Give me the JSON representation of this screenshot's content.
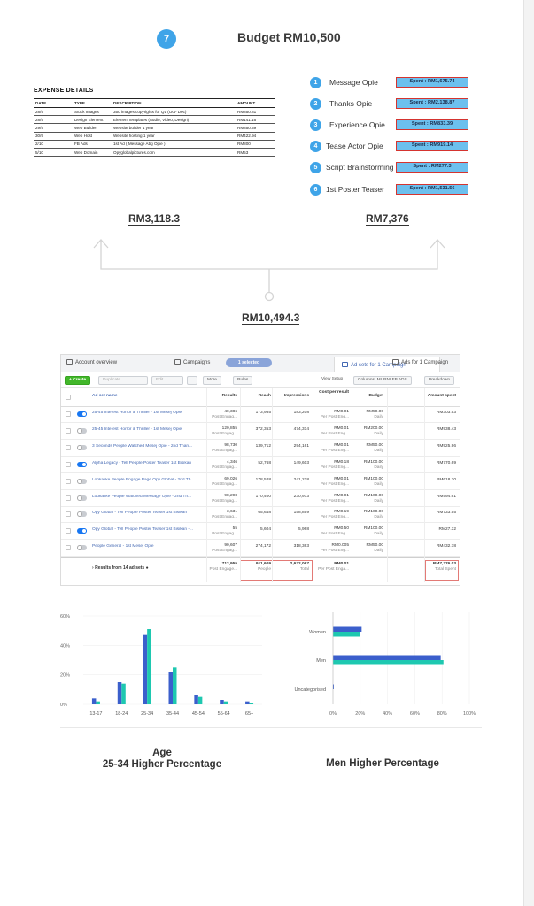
{
  "header": {
    "step_number": "7",
    "title": "Budget RM10,500"
  },
  "expense": {
    "title": "EXPENSE DETAILS",
    "columns": [
      "DATE",
      "TYPE",
      "DESCRIPTION",
      "AMOUNT"
    ],
    "rows": [
      [
        "28/9",
        "Stock Images",
        "350 images copyrights for Q1 (Oct- Dec)",
        "RM850.81"
      ],
      [
        "28/9",
        "Design Element",
        "Element templates (Audio, Video, Design)",
        "RM141.16"
      ],
      [
        "29/9",
        "Web Builder",
        "Website builder 1 year",
        "RM850.39"
      ],
      [
        "30/9",
        "Web Host",
        "Website hosting 1 year",
        "RM422.94"
      ],
      [
        "2/10",
        "FB Ads",
        "1st Ad ( Message Abg Opie )",
        "RM800"
      ],
      [
        "5/10",
        "Web Domain",
        "Opyglobalpictures.com",
        "RM53"
      ]
    ],
    "total": "RM3,118.3"
  },
  "spend": {
    "items": [
      {
        "num": "1",
        "label": "Message Opie",
        "spent": "Spent : RM1,675.74"
      },
      {
        "num": "2",
        "label": "Thanks Opie",
        "spent": "Spent : RM2,138.87"
      },
      {
        "num": "3",
        "label": "Experience Opie",
        "spent": "Spent : RM833.39"
      },
      {
        "num": "4",
        "label": "Tease Actor Opie",
        "spent": "Spent : RM919.14"
      },
      {
        "num": "5",
        "label": "Script Brainstorming",
        "spent": "Spent : RM277.3"
      },
      {
        "num": "6",
        "label": "1st Poster Teaser",
        "spent": "Spent : RM1,531.56"
      }
    ],
    "total": "RM7,376"
  },
  "grand_total": "RM10,494.3",
  "ads_manager": {
    "tabs": {
      "account": "Account overview",
      "campaigns": "Campaigns",
      "selected": "1 selected",
      "adsets": "Ad sets for 1 Campaign",
      "ads": "Ads for 1 Campaign"
    },
    "toolbar": {
      "create": "+ Create",
      "duplicate": "Duplicate",
      "edit": "Edit",
      "more": "More",
      "rules": "Rules",
      "view_setup": "View Setup",
      "columns": "Columns: MURNI FB ADS",
      "breakdown": "Breakdown"
    },
    "headers": {
      "name": "Ad set name",
      "results": "Results",
      "reach": "Reach",
      "impressions": "Impressions",
      "cost": "Cost per result",
      "budget": "Budget",
      "spent": "Amount spent"
    },
    "rows": [
      {
        "on": true,
        "name": "25-45 Interest Horror & Thriller - 1st Mesej Opie",
        "results": "40,386",
        "results_sub": "Post Engag...",
        "reach": "173,985",
        "impressions": "183,208",
        "cost": "RM0.01",
        "cost_sub": "Per Post Eng...",
        "budget": "RM50.00",
        "budget_sub": "Daily",
        "spent": "RM303.53"
      },
      {
        "on": false,
        "name": "25-45 Interest Horror & Thriller - 1st Mesej Opie",
        "results": "120,855",
        "results_sub": "Post Engag...",
        "reach": "372,353",
        "impressions": "474,314",
        "cost": "RM0.01",
        "cost_sub": "Per Post Eng...",
        "budget": "RM200.00",
        "budget_sub": "Daily",
        "spent": "RM938.43"
      },
      {
        "on": false,
        "name": "3 Seconds People Watched Mesej Opie - 2nd Than...",
        "results": "98,730",
        "results_sub": "Post Engag...",
        "reach": "139,712",
        "impressions": "294,161",
        "cost": "RM0.01",
        "cost_sub": "Per Post Eng...",
        "budget": "RM50.00",
        "budget_sub": "Daily",
        "spent": "RM925.96"
      },
      {
        "on": true,
        "name": "Alpha Legacy - Tell People Poster Teaser 1st Bisikan",
        "results": "4,346",
        "results_sub": "Post Engag...",
        "reach": "52,768",
        "impressions": "149,603",
        "cost": "RM0.18",
        "cost_sub": "Per Post Eng...",
        "budget": "RM100.00",
        "budget_sub": "Daily",
        "spent": "RM770.69"
      },
      {
        "on": false,
        "name": "Lookalike People Engage Page Opy Global - 2nd Th...",
        "results": "69,026",
        "results_sub": "Post Engag...",
        "reach": "178,528",
        "impressions": "241,218",
        "cost": "RM0.01",
        "cost_sub": "Per Post Eng...",
        "budget": "RM100.00",
        "budget_sub": "Daily",
        "spent": "RM618.30"
      },
      {
        "on": false,
        "name": "Lookalike People Watched Message Opie - 2nd Th...",
        "results": "98,298",
        "results_sub": "Post Engag...",
        "reach": "170,400",
        "impressions": "230,973",
        "cost": "RM0.01",
        "cost_sub": "Per Post Eng...",
        "budget": "RM100.00",
        "budget_sub": "Daily",
        "spent": "RM594.61"
      },
      {
        "on": false,
        "name": "Opy Global - Tell People Poster Teaser 1st Bisikan",
        "results": "3,631",
        "results_sub": "Post Engag...",
        "reach": "65,648",
        "impressions": "158,859",
        "cost": "RM0.19",
        "cost_sub": "Per Post Eng...",
        "budget": "RM100.00",
        "budget_sub": "Daily",
        "spent": "RM733.55"
      },
      {
        "on": true,
        "name": "Opy Global - Tell People Poster Teaser 1st Bisikan -...",
        "results": "55",
        "results_sub": "Post Engag...",
        "reach": "5,604",
        "impressions": "5,968",
        "cost": "RM0.50",
        "cost_sub": "Per Post Eng...",
        "budget": "RM100.00",
        "budget_sub": "Daily",
        "spent": "RM27.32"
      },
      {
        "on": false,
        "name": "People General - 1st Mesej Opie",
        "results": "90,607",
        "results_sub": "Post Engag...",
        "reach": "274,172",
        "impressions": "318,363",
        "cost": "RM0.005",
        "cost_sub": "Per Post Eng...",
        "budget": "RM50.00",
        "budget_sub": "Daily",
        "spent": "RM432.78"
      }
    ],
    "footer": {
      "label": "Results from 14 ad sets",
      "results": "712,955",
      "results_sub": "Post Engage...",
      "reach": "911,609",
      "reach_sub": "People",
      "impressions": "2,632,067",
      "impressions_sub": "Total",
      "cost": "RM0.01",
      "cost_sub": "Per Post Enga...",
      "spent": "RM7,376.03",
      "spent_sub": "Total Spent"
    }
  },
  "chart_data": [
    {
      "type": "bar",
      "categories": [
        "13-17",
        "18-24",
        "25-34",
        "35-44",
        "45-54",
        "55-64",
        "65+"
      ],
      "series": [
        {
          "values": [
            4,
            15,
            47,
            22,
            6,
            3,
            2
          ]
        },
        {
          "values": [
            2,
            14,
            51,
            25,
            5,
            2,
            1
          ]
        }
      ],
      "yticks": [
        "60%",
        "40%",
        "20%",
        "0%"
      ],
      "ylim": [
        0,
        60
      ],
      "colors": [
        "#3b5fcc",
        "#1ec8b0"
      ]
    },
    {
      "type": "bar",
      "orientation": "horizontal",
      "categories": [
        "Women",
        "Men",
        "Uncategorised"
      ],
      "series": [
        {
          "values": [
            21,
            79,
            0.3
          ]
        },
        {
          "values": [
            20,
            81,
            0
          ]
        }
      ],
      "xticks": [
        "0%",
        "20%",
        "40%",
        "60%",
        "80%",
        "100%"
      ],
      "xlim": [
        0,
        100
      ],
      "colors": [
        "#3b5fcc",
        "#1ec8b0"
      ]
    }
  ],
  "captions": {
    "age": "Age",
    "age_sub": "25-34 Higher Percentage",
    "gender": "Men Higher Percentage"
  }
}
